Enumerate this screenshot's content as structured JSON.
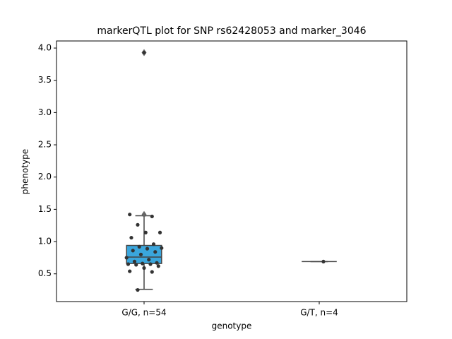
{
  "chart_data": {
    "type": "box",
    "title": "markerQTL plot for SNP rs62428053 and marker_3046",
    "x_label": "genotype",
    "y_label": "phenotype",
    "categories": [
      "G/G, n=54",
      "G/T, n=4"
    ],
    "ylim": [
      0.07,
      4.11
    ],
    "yticks": [
      0.5,
      {
        "value": 1.0,
        "label": "1.0"
      },
      1.5,
      {
        "value": 2.0,
        "label": "2.0"
      },
      2.5,
      {
        "value": 3.0,
        "label": "3.0"
      },
      3.5,
      {
        "value": 4.0,
        "label": "4.0"
      }
    ],
    "box_color": "#3aa6dd",
    "boxes": [
      {
        "whislo": 0.26,
        "q1": 0.66,
        "med": 0.76,
        "q3": 0.94,
        "whishi": 1.4,
        "fliers": [
          1.42,
          3.93
        ]
      },
      {
        "whislo": 0.69,
        "q1": 0.69,
        "med": 0.69,
        "q3": 0.69,
        "whishi": 0.69,
        "fliers": []
      }
    ],
    "points": [
      [
        3.93,
        1.42,
        1.39,
        1.26,
        1.14,
        1.14,
        1.06,
        0.96,
        0.92,
        0.9,
        0.89,
        0.86,
        0.84,
        0.8,
        0.75,
        0.72,
        0.69,
        0.67,
        0.66,
        0.65,
        0.65,
        0.64,
        0.62,
        0.59,
        0.54,
        0.53,
        0.25
      ],
      [
        0.69
      ]
    ]
  }
}
